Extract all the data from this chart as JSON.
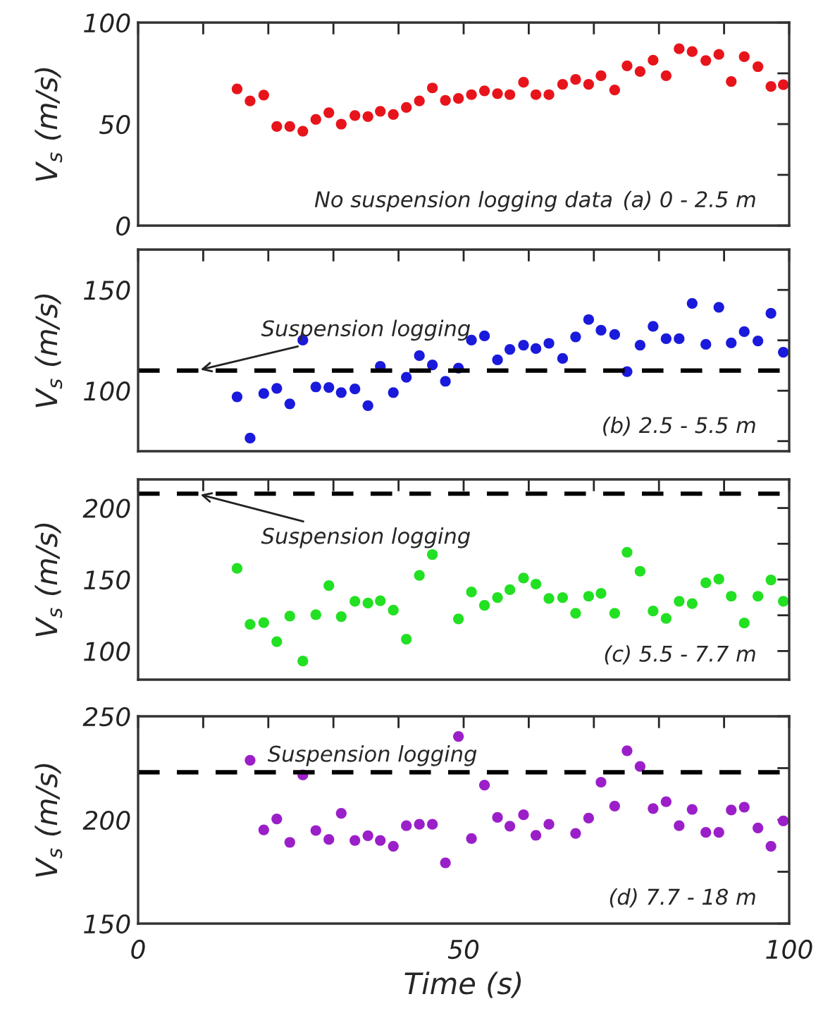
{
  "chart_data": [
    {
      "type": "scatter",
      "ylabel": "V$_{s}$ (m/s)",
      "marker": "circle",
      "tick_labels": "y",
      "xlim": [
        0,
        100
      ],
      "xticks": [
        {
          "value": 0,
          "label": null
        },
        {
          "value": 10,
          "label": null
        },
        {
          "value": 20,
          "label": null
        },
        {
          "value": 30,
          "label": null
        },
        {
          "value": 40,
          "label": null
        },
        {
          "value": 50,
          "label": null
        },
        {
          "value": 60,
          "label": null
        },
        {
          "value": 70,
          "label": null
        },
        {
          "value": 80,
          "label": null
        },
        {
          "value": 90,
          "label": null
        },
        {
          "value": 100,
          "label": null
        }
      ],
      "ylim": [
        0,
        100
      ],
      "yticks": [
        0,
        {
          "value": 25,
          "label": null
        },
        50,
        {
          "value": 75,
          "label": null
        },
        100
      ],
      "annotations": [
        "No suspension logging data",
        "(a) 0 - 2.5 m"
      ],
      "x": [
        15.2,
        17.2,
        19.3,
        21.3,
        23.3,
        25.3,
        27.3,
        29.3,
        31.2,
        33.3,
        35.3,
        37.2,
        39.2,
        41.2,
        43.2,
        45.2,
        47.2,
        49.2,
        51.2,
        53.2,
        55.2,
        57.1,
        59.2,
        61.1,
        63.1,
        65.2,
        67.2,
        69.2,
        71.1,
        73.2,
        75.1,
        77.1,
        79.1,
        81.1,
        83.1,
        85.1,
        87.2,
        89.2,
        91.1,
        93.1,
        95.2,
        97.2,
        99.1
      ],
      "series": [
        {
          "color": "#e8141b",
          "values": [
            67.3,
            61.4,
            64.3,
            48.8,
            48.8,
            46.5,
            52.3,
            55.6,
            50,
            54.2,
            53.7,
            56.3,
            54.7,
            58.2,
            61.4,
            67.8,
            61.7,
            62.6,
            64.5,
            66.4,
            65,
            64.5,
            70.6,
            64.5,
            64.5,
            69.6,
            72,
            69.6,
            73.8,
            66.8,
            78.7,
            75.9,
            81.5,
            73.8,
            87.1,
            85.7,
            81.3,
            84.3,
            71,
            83.2,
            78.3,
            68.5,
            69.4
          ]
        }
      ]
    },
    {
      "type": "scatter",
      "ylabel": "V$_{s}$ (m/s)",
      "marker": "circle",
      "tick_labels": "y",
      "xlim": [
        0,
        100
      ],
      "xticks": [
        {
          "value": 0,
          "label": null
        },
        {
          "value": 10,
          "label": null
        },
        {
          "value": 20,
          "label": null
        },
        {
          "value": 30,
          "label": null
        },
        {
          "value": 40,
          "label": null
        },
        {
          "value": 50,
          "label": null
        },
        {
          "value": 60,
          "label": null
        },
        {
          "value": 70,
          "label": null
        },
        {
          "value": 80,
          "label": null
        },
        {
          "value": 90,
          "label": null
        },
        {
          "value": 100,
          "label": null
        }
      ],
      "ylim": [
        70,
        170
      ],
      "yticks": [
        {
          "value": 75,
          "label": null
        },
        100,
        {
          "value": 125,
          "label": null
        },
        150
      ],
      "annotations": [
        "(b) 2.5 - 5.5 m"
      ],
      "ref_lines": [
        {
          "axis": "y",
          "value": 110,
          "label": "Suspension logging",
          "line_style": "dashed",
          "color": "#000000"
        }
      ],
      "x": [
        15.2,
        17.2,
        19.3,
        21.3,
        23.3,
        25.3,
        27.3,
        29.3,
        31.2,
        33.3,
        35.3,
        37.2,
        39.2,
        41.2,
        43.2,
        45.2,
        47.2,
        49.2,
        51.2,
        53.2,
        55.2,
        57.1,
        59.2,
        61.1,
        63.1,
        65.2,
        67.2,
        69.2,
        71.1,
        73.2,
        75.1,
        77.1,
        79.1,
        81.1,
        83.1,
        85.1,
        87.2,
        89.2,
        91.1,
        93.1,
        95.2,
        97.2,
        99.1
      ],
      "series": [
        {
          "color": "#1a1adc",
          "values": [
            97,
            76.5,
            98.6,
            101.2,
            93.5,
            125.1,
            101.9,
            101.6,
            99.1,
            100.9,
            92.6,
            112.1,
            99.1,
            106.7,
            117.4,
            112.8,
            104.7,
            111.2,
            125.1,
            127.2,
            115.3,
            120.5,
            122.6,
            120.9,
            123.5,
            116,
            126.7,
            135.3,
            130,
            127.9,
            109.5,
            122.6,
            131.9,
            125.8,
            125.8,
            143.3,
            123,
            141.4,
            123.7,
            129.3,
            124.7,
            138.4,
            119.1
          ]
        }
      ]
    },
    {
      "type": "scatter",
      "ylabel": "V$_{s}$ (m/s)",
      "marker": "circle",
      "tick_labels": "y",
      "xlim": [
        0,
        100
      ],
      "xticks": [
        {
          "value": 0,
          "label": null
        },
        {
          "value": 10,
          "label": null
        },
        {
          "value": 20,
          "label": null
        },
        {
          "value": 30,
          "label": null
        },
        {
          "value": 40,
          "label": null
        },
        {
          "value": 50,
          "label": null
        },
        {
          "value": 60,
          "label": null
        },
        {
          "value": 70,
          "label": null
        },
        {
          "value": 80,
          "label": null
        },
        {
          "value": 90,
          "label": null
        },
        {
          "value": 100,
          "label": null
        }
      ],
      "ylim": [
        80,
        220
      ],
      "yticks": [
        100,
        {
          "value": 125,
          "label": null
        },
        150,
        {
          "value": 175,
          "label": null
        },
        200
      ],
      "annotations": [
        "(c) 5.5 - 7.7 m"
      ],
      "ref_lines": [
        {
          "axis": "y",
          "value": 210,
          "label": "Suspension logging",
          "line_style": "dashed",
          "color": "#000000"
        }
      ],
      "x": [
        15.2,
        17.2,
        19.3,
        21.3,
        23.3,
        25.3,
        27.3,
        29.3,
        31.2,
        33.3,
        35.3,
        37.2,
        39.2,
        41.2,
        43.2,
        45.2,
        49.2,
        51.2,
        53.2,
        55.2,
        57.1,
        59.2,
        61.1,
        63.1,
        65.2,
        67.2,
        69.2,
        71.1,
        73.2,
        75.1,
        77.1,
        79.1,
        81.1,
        83.1,
        85.1,
        87.2,
        89.2,
        91.1,
        93.1,
        95.2,
        97.2,
        99.1
      ],
      "series": [
        {
          "color": "#22e022",
          "values": [
            157.8,
            118.6,
            119.9,
            106.6,
            124.4,
            93,
            125.4,
            145.8,
            124.1,
            134.8,
            133.5,
            135.1,
            128.6,
            108.3,
            152.9,
            167.5,
            122.5,
            141.3,
            131.9,
            137.4,
            142.9,
            151,
            146.8,
            136.7,
            137.4,
            126.4,
            138.3,
            140.3,
            126.4,
            169.1,
            155.8,
            128,
            122.8,
            134.8,
            133.2,
            147.7,
            150.3,
            138.3,
            119.6,
            138.3,
            149.7,
            134.8
          ]
        }
      ]
    },
    {
      "type": "scatter",
      "ylabel": "V$_{s}$ (m/s)",
      "xlabel": "Time (s)",
      "marker": "circle",
      "xlim": [
        0,
        100
      ],
      "xticks": [
        0,
        {
          "value": 10,
          "label": null
        },
        {
          "value": 20,
          "label": null
        },
        {
          "value": 30,
          "label": null
        },
        {
          "value": 40,
          "label": null
        },
        50,
        {
          "value": 60,
          "label": null
        },
        {
          "value": 70,
          "label": null
        },
        {
          "value": 80,
          "label": null
        },
        {
          "value": 90,
          "label": null
        },
        100
      ],
      "ylim": [
        150,
        250
      ],
      "yticks": [
        150,
        {
          "value": 175,
          "label": null
        },
        200,
        {
          "value": 225,
          "label": null
        },
        250
      ],
      "annotations": [
        "(d) 7.7 - 18 m"
      ],
      "ref_lines": [
        {
          "axis": "y",
          "value": 223,
          "label": "Suspension logging",
          "line_style": "dashed",
          "color": "#000000"
        }
      ],
      "x": [
        17.2,
        19.3,
        21.3,
        23.3,
        25.3,
        27.3,
        29.3,
        31.2,
        33.3,
        35.3,
        37.2,
        39.2,
        41.2,
        43.2,
        45.2,
        47.2,
        49.2,
        51.2,
        53.2,
        55.2,
        57.1,
        59.2,
        61.1,
        63.1,
        67.2,
        69.2,
        71.1,
        73.2,
        75.1,
        77.1,
        79.1,
        81.1,
        83.1,
        85.1,
        87.2,
        89.2,
        91.1,
        93.1,
        95.2,
        97.2,
        99.1
      ],
      "series": [
        {
          "color": "#9b1fc9",
          "values": [
            228.8,
            195.2,
            200.5,
            189.2,
            221.7,
            194.9,
            190.6,
            203.2,
            190.1,
            192.4,
            190.1,
            187.3,
            197.2,
            197.9,
            197.9,
            179.3,
            240.3,
            191,
            216.8,
            201.2,
            197,
            202.5,
            192.6,
            197.9,
            193.5,
            200.9,
            218.2,
            206.7,
            233.4,
            225.8,
            205.5,
            208.8,
            197.2,
            205.1,
            194,
            194,
            204.8,
            206.2,
            196.1,
            187.3,
            199.5
          ]
        }
      ]
    }
  ]
}
